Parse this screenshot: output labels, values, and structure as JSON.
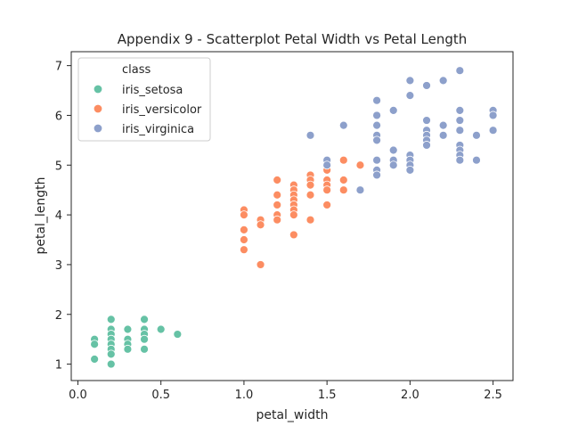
{
  "chart_data": {
    "type": "scatter",
    "title": "Appendix 9 - Scatterplot Petal Width vs Petal Length",
    "xlabel": "petal_width",
    "ylabel": "petal_length",
    "xlim": [
      -0.04,
      2.62
    ],
    "ylim": [
      0.67,
      7.28
    ],
    "xticks": [
      0.0,
      0.5,
      1.0,
      1.5,
      2.0,
      2.5
    ],
    "xtick_labels": [
      "0.0",
      "0.5",
      "1.0",
      "1.5",
      "2.0",
      "2.5"
    ],
    "yticks": [
      1,
      2,
      3,
      4,
      5,
      6,
      7
    ],
    "ytick_labels": [
      "1",
      "2",
      "3",
      "4",
      "5",
      "6",
      "7"
    ],
    "grid": false,
    "legend": {
      "title": "class",
      "position": "top-left"
    },
    "series": [
      {
        "name": "iris_setosa",
        "color": "#66c2a5",
        "points": [
          [
            0.1,
            1.5
          ],
          [
            0.1,
            1.4
          ],
          [
            0.1,
            1.1
          ],
          [
            0.2,
            1.9
          ],
          [
            0.2,
            1.7
          ],
          [
            0.2,
            1.6
          ],
          [
            0.2,
            1.5
          ],
          [
            0.2,
            1.4
          ],
          [
            0.2,
            1.3
          ],
          [
            0.2,
            1.2
          ],
          [
            0.2,
            1.0
          ],
          [
            0.3,
            1.7
          ],
          [
            0.3,
            1.5
          ],
          [
            0.3,
            1.4
          ],
          [
            0.3,
            1.3
          ],
          [
            0.4,
            1.9
          ],
          [
            0.4,
            1.7
          ],
          [
            0.4,
            1.6
          ],
          [
            0.4,
            1.5
          ],
          [
            0.4,
            1.3
          ],
          [
            0.5,
            1.7
          ],
          [
            0.6,
            1.6
          ]
        ]
      },
      {
        "name": "iris_versicolor",
        "color": "#fc8d62",
        "points": [
          [
            1.0,
            4.1
          ],
          [
            1.0,
            4.0
          ],
          [
            1.0,
            3.7
          ],
          [
            1.0,
            3.5
          ],
          [
            1.0,
            3.3
          ],
          [
            1.1,
            3.9
          ],
          [
            1.1,
            3.8
          ],
          [
            1.1,
            3.0
          ],
          [
            1.2,
            4.7
          ],
          [
            1.2,
            4.4
          ],
          [
            1.2,
            4.2
          ],
          [
            1.2,
            4.0
          ],
          [
            1.2,
            3.9
          ],
          [
            1.3,
            4.6
          ],
          [
            1.3,
            4.5
          ],
          [
            1.3,
            4.4
          ],
          [
            1.3,
            4.3
          ],
          [
            1.3,
            4.2
          ],
          [
            1.3,
            4.1
          ],
          [
            1.3,
            4.0
          ],
          [
            1.3,
            3.6
          ],
          [
            1.4,
            4.8
          ],
          [
            1.4,
            4.7
          ],
          [
            1.4,
            4.6
          ],
          [
            1.4,
            4.4
          ],
          [
            1.4,
            3.9
          ],
          [
            1.5,
            5.0
          ],
          [
            1.5,
            4.9
          ],
          [
            1.5,
            4.7
          ],
          [
            1.5,
            4.6
          ],
          [
            1.5,
            4.5
          ],
          [
            1.5,
            4.2
          ],
          [
            1.6,
            5.1
          ],
          [
            1.6,
            4.7
          ],
          [
            1.6,
            4.5
          ],
          [
            1.7,
            5.0
          ]
        ]
      },
      {
        "name": "iris_virginica",
        "color": "#8da0cb",
        "points": [
          [
            1.4,
            5.6
          ],
          [
            1.5,
            5.1
          ],
          [
            1.5,
            5.0
          ],
          [
            1.6,
            5.8
          ],
          [
            1.7,
            4.5
          ],
          [
            1.8,
            6.3
          ],
          [
            1.8,
            6.0
          ],
          [
            1.8,
            5.8
          ],
          [
            1.8,
            5.6
          ],
          [
            1.8,
            5.5
          ],
          [
            1.8,
            5.1
          ],
          [
            1.8,
            4.9
          ],
          [
            1.8,
            4.8
          ],
          [
            1.9,
            6.1
          ],
          [
            1.9,
            5.3
          ],
          [
            1.9,
            5.1
          ],
          [
            1.9,
            5.0
          ],
          [
            2.0,
            6.7
          ],
          [
            2.0,
            6.4
          ],
          [
            2.0,
            5.2
          ],
          [
            2.0,
            5.1
          ],
          [
            2.0,
            5.0
          ],
          [
            2.0,
            4.9
          ],
          [
            2.1,
            6.6
          ],
          [
            2.1,
            5.9
          ],
          [
            2.1,
            5.7
          ],
          [
            2.1,
            5.6
          ],
          [
            2.1,
            5.5
          ],
          [
            2.1,
            5.4
          ],
          [
            2.2,
            6.7
          ],
          [
            2.2,
            5.8
          ],
          [
            2.2,
            5.6
          ],
          [
            2.3,
            6.9
          ],
          [
            2.3,
            6.1
          ],
          [
            2.3,
            5.9
          ],
          [
            2.3,
            5.7
          ],
          [
            2.3,
            5.4
          ],
          [
            2.3,
            5.3
          ],
          [
            2.3,
            5.2
          ],
          [
            2.3,
            5.1
          ],
          [
            2.4,
            5.6
          ],
          [
            2.4,
            5.1
          ],
          [
            2.5,
            6.1
          ],
          [
            2.5,
            6.0
          ],
          [
            2.5,
            5.7
          ]
        ]
      }
    ]
  }
}
